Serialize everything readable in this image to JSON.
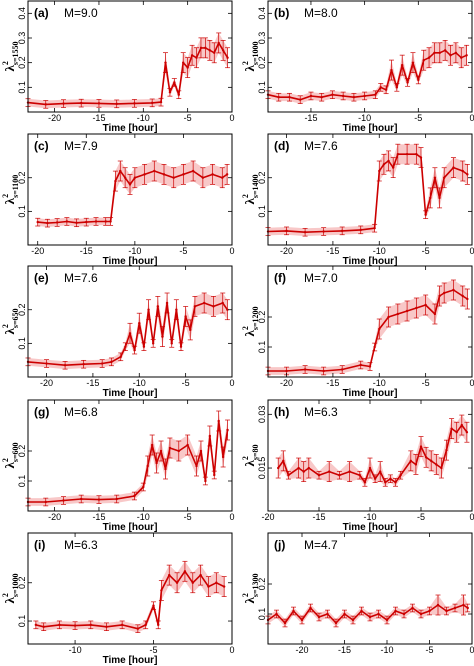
{
  "figure": {
    "x_axis_label": "Time [hour]",
    "colors": {
      "series": "#cc0000",
      "band": "#f5b5b5",
      "frame": "#000000"
    }
  },
  "chart_data": [
    {
      "type": "line",
      "panel": "(a)",
      "magnitude": "M=9.0",
      "ylabel": "λ",
      "ylabel_sup": "2",
      "ylabel_sub": "s=1550",
      "xlim": [
        -23,
        0
      ],
      "ylim": [
        0,
        0.45
      ],
      "xticks": [
        -20,
        -15,
        -10,
        -5,
        0
      ],
      "yticks": [
        0.1,
        0.2,
        0.3,
        0.4
      ],
      "show_xlabel": true,
      "points": [
        [
          -23,
          0.038
        ],
        [
          -21,
          0.031
        ],
        [
          -19,
          0.034
        ],
        [
          -17,
          0.036
        ],
        [
          -15,
          0.035
        ],
        [
          -13,
          0.033
        ],
        [
          -11,
          0.035
        ],
        [
          -9,
          0.037
        ],
        [
          -8,
          0.04
        ],
        [
          -7.5,
          0.2
        ],
        [
          -7,
          0.08
        ],
        [
          -6.5,
          0.12
        ],
        [
          -6,
          0.07
        ],
        [
          -5.5,
          0.2
        ],
        [
          -5,
          0.18
        ],
        [
          -4.5,
          0.23
        ],
        [
          -4,
          0.22
        ],
        [
          -3.5,
          0.26
        ],
        [
          -3,
          0.26
        ],
        [
          -2.5,
          0.25
        ],
        [
          -2,
          0.24
        ],
        [
          -1.5,
          0.28
        ],
        [
          -1,
          0.25
        ],
        [
          -0.5,
          0.22
        ]
      ]
    },
    {
      "type": "line",
      "panel": "(b)",
      "magnitude": "M=8.0",
      "ylabel": "λ",
      "ylabel_sup": "2",
      "ylabel_sub": "s=1000",
      "xlim": [
        -19,
        0
      ],
      "ylim": [
        0,
        0.45
      ],
      "xticks": [
        -15,
        -10,
        -5,
        0
      ],
      "yticks": [
        0.1,
        0.2,
        0.3,
        0.4
      ],
      "show_xlabel": true,
      "points": [
        [
          -19,
          0.07
        ],
        [
          -18,
          0.06
        ],
        [
          -17,
          0.06
        ],
        [
          -16,
          0.05
        ],
        [
          -15,
          0.065
        ],
        [
          -14,
          0.06
        ],
        [
          -13,
          0.07
        ],
        [
          -12,
          0.065
        ],
        [
          -11,
          0.06
        ],
        [
          -10,
          0.065
        ],
        [
          -9,
          0.07
        ],
        [
          -8.5,
          0.1
        ],
        [
          -8,
          0.09
        ],
        [
          -7.5,
          0.17
        ],
        [
          -7,
          0.1
        ],
        [
          -6.5,
          0.19
        ],
        [
          -6,
          0.12
        ],
        [
          -5.5,
          0.2
        ],
        [
          -5,
          0.13
        ],
        [
          -4.5,
          0.21
        ],
        [
          -4,
          0.22
        ],
        [
          -3.5,
          0.24
        ],
        [
          -3,
          0.24
        ],
        [
          -2.5,
          0.25
        ],
        [
          -2,
          0.23
        ],
        [
          -1.5,
          0.24
        ],
        [
          -1,
          0.22
        ],
        [
          -0.5,
          0.23
        ]
      ]
    },
    {
      "type": "line",
      "panel": "(c)",
      "magnitude": "M=7.9",
      "ylabel": "λ",
      "ylabel_sup": "2",
      "ylabel_sub": "s=1100",
      "xlim": [
        -21,
        0
      ],
      "ylim": [
        0,
        0.33
      ],
      "xticks": [
        -20,
        -15,
        -10,
        -5,
        0
      ],
      "yticks": [
        0.1,
        0.2
      ],
      "show_xlabel": true,
      "points": [
        [
          -20,
          0.068
        ],
        [
          -19,
          0.065
        ],
        [
          -18,
          0.067
        ],
        [
          -17,
          0.07
        ],
        [
          -16,
          0.066
        ],
        [
          -15,
          0.068
        ],
        [
          -14,
          0.07
        ],
        [
          -13,
          0.07
        ],
        [
          -12.5,
          0.07
        ],
        [
          -12,
          0.19
        ],
        [
          -11.5,
          0.22
        ],
        [
          -11,
          0.2
        ],
        [
          -10.5,
          0.18
        ],
        [
          -10,
          0.2
        ],
        [
          -9,
          0.21
        ],
        [
          -8,
          0.22
        ],
        [
          -7,
          0.21
        ],
        [
          -6,
          0.2
        ],
        [
          -5,
          0.21
        ],
        [
          -4,
          0.22
        ],
        [
          -3,
          0.2
        ],
        [
          -2,
          0.21
        ],
        [
          -1,
          0.2
        ],
        [
          -0.5,
          0.21
        ]
      ]
    },
    {
      "type": "line",
      "panel": "(d)",
      "magnitude": "M=7.6",
      "ylabel": "λ",
      "ylabel_sup": "2",
      "ylabel_sub": "s=1400",
      "xlim": [
        -22,
        0
      ],
      "ylim": [
        0,
        0.33
      ],
      "xticks": [
        -20,
        -15,
        -10,
        -5,
        0
      ],
      "yticks": [
        0.1,
        0.2
      ],
      "show_xlabel": true,
      "points": [
        [
          -22,
          0.04
        ],
        [
          -20,
          0.042
        ],
        [
          -18,
          0.038
        ],
        [
          -16,
          0.04
        ],
        [
          -14,
          0.042
        ],
        [
          -12,
          0.045
        ],
        [
          -10.5,
          0.05
        ],
        [
          -10,
          0.22
        ],
        [
          -9.5,
          0.24
        ],
        [
          -9,
          0.25
        ],
        [
          -8.5,
          0.23
        ],
        [
          -8,
          0.27
        ],
        [
          -7,
          0.27
        ],
        [
          -6,
          0.27
        ],
        [
          -5.5,
          0.26
        ],
        [
          -5,
          0.09
        ],
        [
          -4.5,
          0.14
        ],
        [
          -4,
          0.2
        ],
        [
          -3.5,
          0.14
        ],
        [
          -3,
          0.2
        ],
        [
          -2,
          0.23
        ],
        [
          -1,
          0.22
        ],
        [
          -0.5,
          0.21
        ]
      ]
    },
    {
      "type": "line",
      "panel": "(e)",
      "magnitude": "M=7.6",
      "ylabel": "λ",
      "ylabel_sup": "2",
      "ylabel_sub": "s=650",
      "xlim": [
        -22,
        0
      ],
      "ylim": [
        0,
        0.33
      ],
      "xticks": [
        -20,
        -15,
        -10,
        -5,
        0
      ],
      "yticks": [
        0.1,
        0.2
      ],
      "show_xlabel": true,
      "points": [
        [
          -22,
          0.045
        ],
        [
          -20,
          0.04
        ],
        [
          -18,
          0.035
        ],
        [
          -16,
          0.038
        ],
        [
          -14,
          0.04
        ],
        [
          -13,
          0.045
        ],
        [
          -12,
          0.06
        ],
        [
          -11.5,
          0.09
        ],
        [
          -11,
          0.13
        ],
        [
          -10.5,
          0.08
        ],
        [
          -10,
          0.16
        ],
        [
          -9.5,
          0.09
        ],
        [
          -9,
          0.2
        ],
        [
          -8.5,
          0.1
        ],
        [
          -8,
          0.21
        ],
        [
          -7.5,
          0.12
        ],
        [
          -7,
          0.22
        ],
        [
          -6.5,
          0.1
        ],
        [
          -6,
          0.2
        ],
        [
          -5.5,
          0.09
        ],
        [
          -5,
          0.18
        ],
        [
          -4.5,
          0.14
        ],
        [
          -4,
          0.21
        ],
        [
          -3,
          0.22
        ],
        [
          -2,
          0.21
        ],
        [
          -1,
          0.22
        ],
        [
          -0.5,
          0.2
        ]
      ]
    },
    {
      "type": "line",
      "panel": "(f)",
      "magnitude": "M=7.0",
      "ylabel": "λ",
      "ylabel_sup": "2",
      "ylabel_sub": "s=1200",
      "xlim": [
        -22,
        0
      ],
      "ylim": [
        0,
        0.37
      ],
      "xticks": [
        -20,
        -15,
        -10,
        -5,
        0
      ],
      "yticks": [
        0.1,
        0.2
      ],
      "show_xlabel": true,
      "points": [
        [
          -22,
          0.02
        ],
        [
          -20,
          0.02
        ],
        [
          -18,
          0.025
        ],
        [
          -16,
          0.02
        ],
        [
          -14,
          0.025
        ],
        [
          -12,
          0.04
        ],
        [
          -11,
          0.035
        ],
        [
          -10.5,
          0.1
        ],
        [
          -10,
          0.16
        ],
        [
          -9,
          0.2
        ],
        [
          -8,
          0.21
        ],
        [
          -7,
          0.22
        ],
        [
          -6,
          0.23
        ],
        [
          -5,
          0.24
        ],
        [
          -4,
          0.21
        ],
        [
          -3.5,
          0.27
        ],
        [
          -3,
          0.28
        ],
        [
          -2,
          0.29
        ],
        [
          -1,
          0.27
        ],
        [
          -0.5,
          0.26
        ]
      ]
    },
    {
      "type": "line",
      "panel": "(g)",
      "magnitude": "M=6.8",
      "ylabel": "λ",
      "ylabel_sup": "2",
      "ylabel_sub": "s=600",
      "xlim": [
        -23,
        0
      ],
      "ylim": [
        0,
        0.37
      ],
      "xticks": [
        -20,
        -15,
        -10,
        -5,
        0
      ],
      "yticks": [
        0.1,
        0.2
      ],
      "show_xlabel": true,
      "points": [
        [
          -23,
          0.03
        ],
        [
          -21,
          0.03
        ],
        [
          -19,
          0.035
        ],
        [
          -17,
          0.04
        ],
        [
          -15,
          0.038
        ],
        [
          -13,
          0.04
        ],
        [
          -11,
          0.05
        ],
        [
          -10,
          0.08
        ],
        [
          -9.5,
          0.15
        ],
        [
          -9,
          0.22
        ],
        [
          -8.5,
          0.16
        ],
        [
          -8,
          0.2
        ],
        [
          -7.5,
          0.14
        ],
        [
          -7,
          0.21
        ],
        [
          -6,
          0.2
        ],
        [
          -5,
          0.22
        ],
        [
          -4,
          0.15
        ],
        [
          -3.5,
          0.2
        ],
        [
          -3,
          0.1
        ],
        [
          -2.5,
          0.25
        ],
        [
          -2,
          0.12
        ],
        [
          -1.5,
          0.3
        ],
        [
          -1,
          0.18
        ],
        [
          -0.5,
          0.27
        ]
      ]
    },
    {
      "type": "line",
      "panel": "(h)",
      "magnitude": "M=6.3",
      "ylabel": "λ",
      "ylabel_sup": "2",
      "ylabel_sub": "s=80",
      "xlim": [
        -20,
        0
      ],
      "ylim": [
        0.003,
        0.034
      ],
      "xticks": [
        -20,
        -15,
        -10,
        -5,
        0
      ],
      "yticks": [
        0.015,
        0.03
      ],
      "show_xlabel": true,
      "points": [
        [
          -19,
          0.015
        ],
        [
          -18.5,
          0.017
        ],
        [
          -18,
          0.013
        ],
        [
          -17,
          0.015
        ],
        [
          -16.5,
          0.014
        ],
        [
          -16,
          0.015
        ],
        [
          -15,
          0.013
        ],
        [
          -14,
          0.014
        ],
        [
          -13,
          0.013
        ],
        [
          -12,
          0.014
        ],
        [
          -11,
          0.013
        ],
        [
          -10.5,
          0.011
        ],
        [
          -10,
          0.015
        ],
        [
          -9.5,
          0.012
        ],
        [
          -9,
          0.014
        ],
        [
          -8.5,
          0.011
        ],
        [
          -8,
          0.012
        ],
        [
          -7.5,
          0.011
        ],
        [
          -7,
          0.013
        ],
        [
          -6,
          0.017
        ],
        [
          -5.5,
          0.016
        ],
        [
          -5,
          0.021
        ],
        [
          -4.5,
          0.018
        ],
        [
          -4,
          0.017
        ],
        [
          -3.5,
          0.016
        ],
        [
          -3,
          0.015
        ],
        [
          -2.5,
          0.02
        ],
        [
          -2,
          0.026
        ],
        [
          -1.5,
          0.025
        ],
        [
          -1,
          0.027
        ],
        [
          -0.5,
          0.025
        ]
      ]
    },
    {
      "type": "line",
      "panel": "(i)",
      "magnitude": "M=6.3",
      "ylabel": "λ",
      "ylabel_sup": "2",
      "ylabel_sub": "s=1000",
      "xlim": [
        -13,
        0
      ],
      "ylim": [
        0.04,
        0.33
      ],
      "xticks": [
        -10,
        -5,
        0
      ],
      "yticks": [
        0.1,
        0.2
      ],
      "show_xlabel": true,
      "points": [
        [
          -12.5,
          0.09
        ],
        [
          -12,
          0.085
        ],
        [
          -11,
          0.09
        ],
        [
          -10,
          0.088
        ],
        [
          -9,
          0.09
        ],
        [
          -8,
          0.085
        ],
        [
          -7,
          0.09
        ],
        [
          -6,
          0.08
        ],
        [
          -5.5,
          0.09
        ],
        [
          -5,
          0.14
        ],
        [
          -4.7,
          0.09
        ],
        [
          -4.5,
          0.18
        ],
        [
          -4,
          0.22
        ],
        [
          -3.5,
          0.2
        ],
        [
          -3,
          0.23
        ],
        [
          -2.5,
          0.2
        ],
        [
          -2,
          0.22
        ],
        [
          -1.5,
          0.19
        ],
        [
          -1,
          0.2
        ],
        [
          -0.5,
          0.19
        ]
      ]
    },
    {
      "type": "line",
      "panel": "(j)",
      "magnitude": "M=4.7",
      "ylabel": "λ",
      "ylabel_sup": "2",
      "ylabel_sub": "s=1300",
      "xlim": [
        -24,
        0
      ],
      "ylim": [
        0,
        0.37
      ],
      "xticks": [
        -20,
        -15,
        -10,
        -5,
        0
      ],
      "yticks": [
        0.1,
        0.2
      ],
      "show_xlabel": false,
      "points": [
        [
          -24,
          0.08
        ],
        [
          -23,
          0.1
        ],
        [
          -22,
          0.07
        ],
        [
          -21,
          0.11
        ],
        [
          -20,
          0.08
        ],
        [
          -19,
          0.12
        ],
        [
          -18,
          0.09
        ],
        [
          -17,
          0.1
        ],
        [
          -16,
          0.07
        ],
        [
          -15,
          0.1
        ],
        [
          -14,
          0.08
        ],
        [
          -13,
          0.11
        ],
        [
          -12,
          0.09
        ],
        [
          -11,
          0.1
        ],
        [
          -10,
          0.08
        ],
        [
          -9,
          0.11
        ],
        [
          -8,
          0.1
        ],
        [
          -7,
          0.12
        ],
        [
          -6,
          0.1
        ],
        [
          -5,
          0.11
        ],
        [
          -4,
          0.13
        ],
        [
          -3,
          0.11
        ],
        [
          -2,
          0.12
        ],
        [
          -1,
          0.13
        ],
        [
          -0.5,
          0.12
        ]
      ]
    }
  ]
}
